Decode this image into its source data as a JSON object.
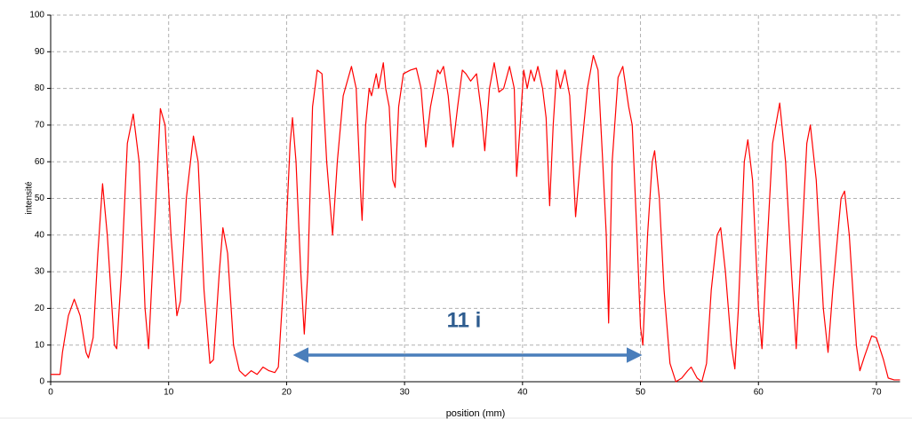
{
  "chart_data": {
    "type": "line",
    "x_label": "position (mm)",
    "y_label": "intensité",
    "annotation": "11 i",
    "color": "#ff0000",
    "grid": true,
    "xlim": [
      0,
      72
    ],
    "ylim": [
      0,
      100
    ],
    "xticks": [
      0,
      10,
      20,
      30,
      40,
      50,
      60,
      70
    ],
    "yticks": [
      0,
      10,
      20,
      30,
      40,
      50,
      60,
      70,
      80,
      90,
      100
    ],
    "x": [
      0,
      0.8,
      1,
      1.5,
      2,
      2.5,
      3,
      3.2,
      3.6,
      4,
      4.4,
      4.8,
      5.4,
      5.6,
      6,
      6.5,
      7,
      7.5,
      8,
      8.3,
      8.7,
      9.3,
      9.7,
      10.2,
      10.7,
      11,
      11.5,
      12.1,
      12.5,
      13,
      13.5,
      13.8,
      14.3,
      14.6,
      15,
      15.5,
      16,
      16.5,
      17,
      17.5,
      18,
      18.5,
      19,
      19.3,
      19.8,
      20.3,
      20.5,
      20.8,
      21.2,
      21.5,
      21.8,
      22.2,
      22.6,
      23,
      23.4,
      23.9,
      24.3,
      24.8,
      25.5,
      25.9,
      26.3,
      26.4,
      26.7,
      27,
      27.2,
      27.6,
      27.8,
      28.2,
      28.4,
      28.7,
      29,
      29.2,
      29.5,
      29.9,
      30.5,
      31,
      31.4,
      31.8,
      32.2,
      32.8,
      33,
      33.3,
      33.7,
      34.1,
      34.5,
      34.9,
      35.2,
      35.6,
      36.1,
      36.5,
      36.8,
      37.2,
      37.6,
      38,
      38.4,
      38.9,
      39.3,
      39.5,
      39.8,
      40.1,
      40.4,
      40.7,
      41,
      41.3,
      41.7,
      42,
      42.3,
      42.6,
      42.9,
      43.2,
      43.6,
      44,
      44.5,
      44.9,
      45.5,
      46,
      46.4,
      46.8,
      47.1,
      47.3,
      47.6,
      48.1,
      48.5,
      49,
      49.3,
      49.7,
      50,
      50.2,
      50.6,
      51,
      51.2,
      51.6,
      52,
      52.5,
      53,
      53.5,
      54,
      54.3,
      54.8,
      55.2,
      55.6,
      56,
      56.5,
      56.8,
      57.2,
      57.7,
      58,
      58.3,
      58.8,
      59.1,
      59.5,
      60,
      60.3,
      60.7,
      61.2,
      61.8,
      62.3,
      62.8,
      63.2,
      63.7,
      64.1,
      64.4,
      64.9,
      65.5,
      65.9,
      66.3,
      67,
      67.3,
      67.7,
      68.3,
      68.6,
      69,
      69.6,
      70,
      70.6,
      71,
      71.5,
      72
    ],
    "values": [
      2,
      2,
      8,
      18,
      22.5,
      18,
      8,
      6.5,
      12,
      35,
      54,
      40,
      10,
      9,
      30,
      65,
      73,
      60,
      20,
      9,
      35,
      74.5,
      70,
      40,
      18,
      22,
      50,
      67,
      60,
      25,
      5,
      6,
      30,
      42,
      35,
      10,
      3,
      1.5,
      3,
      2,
      4,
      3,
      2.5,
      4,
      30,
      65,
      72,
      60,
      30,
      13,
      30,
      75,
      85,
      84,
      60,
      40,
      60,
      78,
      86,
      80,
      50,
      44,
      70,
      80,
      78,
      84,
      80,
      87,
      80,
      75,
      55,
      53,
      75,
      84,
      85,
      85.5,
      80,
      64,
      75,
      85,
      84,
      86,
      78,
      64,
      75,
      85,
      84,
      82,
      84,
      74,
      63,
      80,
      87,
      79,
      80,
      86,
      80,
      56,
      70,
      85,
      80,
      85,
      82,
      86,
      80,
      72,
      48,
      70,
      85,
      80,
      85,
      78,
      45,
      60,
      80,
      89,
      85,
      60,
      40,
      16,
      60,
      83,
      86,
      75,
      70,
      40,
      15,
      10,
      40,
      60,
      63,
      50,
      25,
      5,
      0,
      1,
      3,
      4,
      1,
      0,
      5,
      25,
      40,
      42,
      30,
      10,
      3.5,
      20,
      60,
      66,
      55,
      20,
      9,
      35,
      65,
      76,
      60,
      30,
      9,
      40,
      65,
      70,
      55,
      20,
      8,
      25,
      50,
      52,
      40,
      10,
      3,
      7,
      12.5,
      12,
      6,
      1,
      0.5,
      0.5
    ]
  }
}
